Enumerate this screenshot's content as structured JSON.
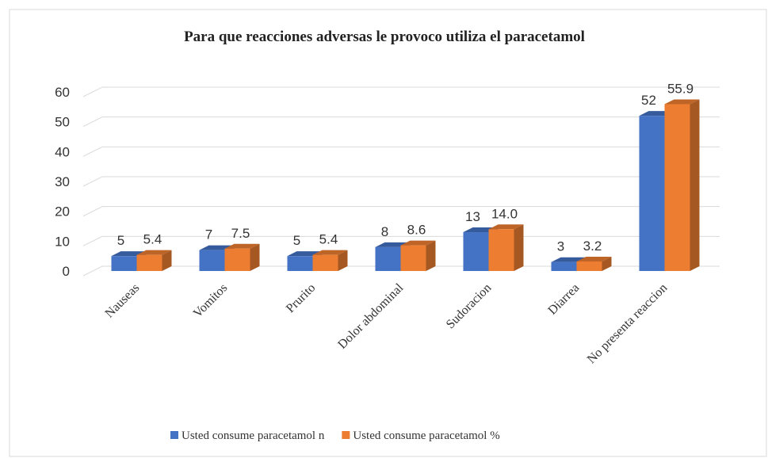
{
  "chart_data": {
    "type": "bar3d",
    "title": "Para que reacciones adversas le provoco  utiliza el paracetamol",
    "categories": [
      "Nauseas",
      "Vomitos",
      "Prurito",
      "Dolor abdominal",
      "Sudoracion",
      "Diarrea",
      "No presenta reaccion"
    ],
    "series": [
      {
        "name": "Usted consume paracetamol n",
        "color": "#4472c4",
        "values": [
          5,
          7,
          5,
          8,
          13,
          3,
          52
        ]
      },
      {
        "name": "Usted consume paracetamol %",
        "color": "#ed7d31",
        "values": [
          5.4,
          7.5,
          5.4,
          8.6,
          14.0,
          3.2,
          55.9
        ],
        "value_labels": [
          "5.4",
          "7.5",
          "5.4",
          "8.6",
          "14.0",
          "3.2",
          "55.9"
        ]
      }
    ],
    "ylim": [
      0,
      60
    ],
    "yticks": [
      0,
      10,
      20,
      30,
      40,
      50,
      60
    ],
    "grid": true,
    "legend": "bottom"
  }
}
